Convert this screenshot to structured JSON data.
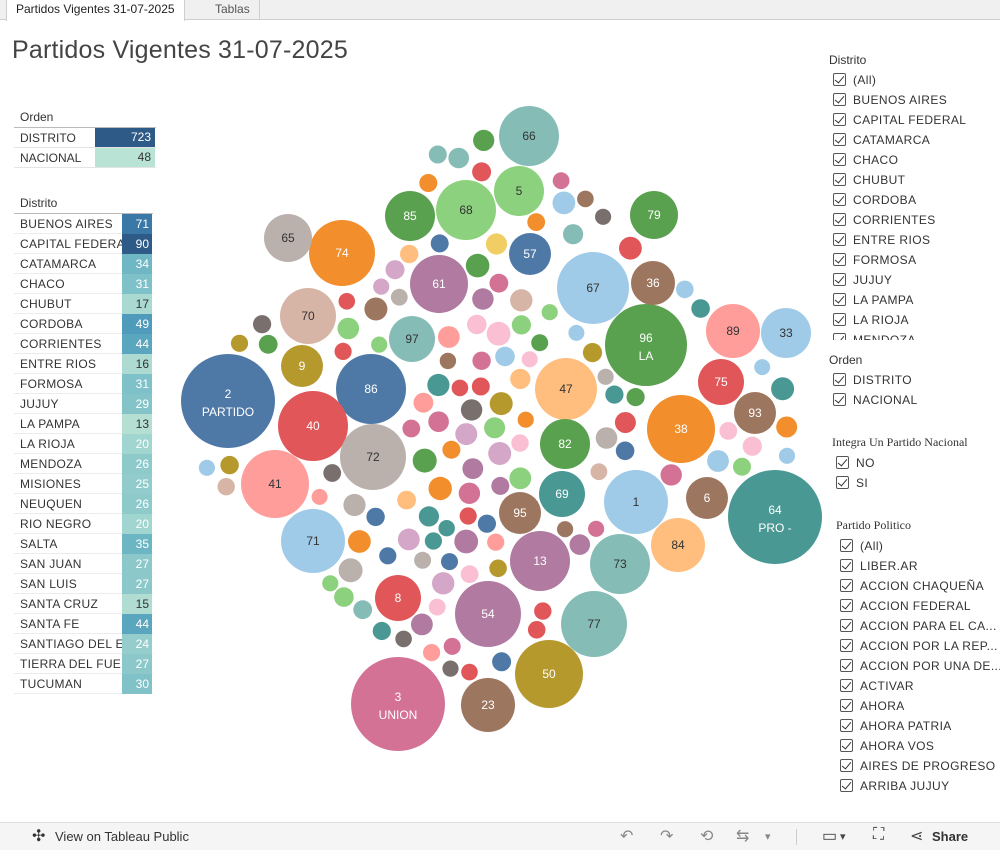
{
  "tabs": [
    {
      "label": "Partidos Vigentes 31-07-2025",
      "active": true
    },
    {
      "label": "Tablas",
      "active": false
    }
  ],
  "title": "Partidos Vigentes 31-07-2025",
  "orden_table": {
    "header": "Orden",
    "rows": [
      {
        "label": "DISTRITO",
        "value": "723",
        "color": "#2e5a87"
      },
      {
        "label": "NACIONAL",
        "value": "48",
        "color": "#b9e3d5"
      }
    ]
  },
  "distrito_table": {
    "header": "Distrito",
    "rows": [
      {
        "label": "BUENOS AIRES",
        "value": "71",
        "color": "#3a78a8"
      },
      {
        "label": "CAPITAL FEDERAL",
        "value": "90",
        "color": "#2e5a87"
      },
      {
        "label": "CATAMARCA",
        "value": "34",
        "color": "#6fb7c4"
      },
      {
        "label": "CHACO",
        "value": "31",
        "color": "#7ec1c8"
      },
      {
        "label": "CHUBUT",
        "value": "17",
        "color": "#a9d9d0"
      },
      {
        "label": "CORDOBA",
        "value": "49",
        "color": "#4f9bbb"
      },
      {
        "label": "CORRIENTES",
        "value": "44",
        "color": "#5aa6bf"
      },
      {
        "label": "ENTRE RIOS",
        "value": "16",
        "color": "#addbd1"
      },
      {
        "label": "FORMOSA",
        "value": "31",
        "color": "#7ec1c8"
      },
      {
        "label": "JUJUY",
        "value": "29",
        "color": "#84c4c9"
      },
      {
        "label": "LA PAMPA",
        "value": "13",
        "color": "#b5dfd3"
      },
      {
        "label": "LA RIOJA",
        "value": "20",
        "color": "#a1d5cf"
      },
      {
        "label": "MENDOZA",
        "value": "26",
        "color": "#8fcacb"
      },
      {
        "label": "MISIONES",
        "value": "25",
        "color": "#92cbcb"
      },
      {
        "label": "NEUQUEN",
        "value": "26",
        "color": "#8fcacb"
      },
      {
        "label": "RIO NEGRO",
        "value": "20",
        "color": "#a1d5cf"
      },
      {
        "label": "SALTA",
        "value": "35",
        "color": "#6cb5c3"
      },
      {
        "label": "SAN JUAN",
        "value": "27",
        "color": "#8cc8ca"
      },
      {
        "label": "SAN LUIS",
        "value": "27",
        "color": "#8cc8ca"
      },
      {
        "label": "SANTA CRUZ",
        "value": "15",
        "color": "#b0dcd2"
      },
      {
        "label": "SANTA FE",
        "value": "44",
        "color": "#5aa6bf"
      },
      {
        "label": "SANTIAGO DEL E..",
        "value": "24",
        "color": "#95cdcc"
      },
      {
        "label": "TIERRA DEL FUE..",
        "value": "27",
        "color": "#8cc8ca"
      },
      {
        "label": "TUCUMAN",
        "value": "30",
        "color": "#81c2c8"
      }
    ]
  },
  "filters": {
    "distrito": {
      "title": "Distrito",
      "items": [
        "(All)",
        "BUENOS AIRES",
        "CAPITAL FEDERAL",
        "CATAMARCA",
        "CHACO",
        "CHUBUT",
        "CORDOBA",
        "CORRIENTES",
        "ENTRE RIOS",
        "FORMOSA",
        "JUJUY",
        "LA PAMPA",
        "LA RIOJA",
        "MENDOZA"
      ]
    },
    "orden": {
      "title": "Orden",
      "items": [
        "DISTRITO",
        "NACIONAL"
      ]
    },
    "integra": {
      "title": "Integra Un Partido Nacional",
      "items": [
        "NO",
        "SI"
      ]
    },
    "partido": {
      "title": "Partido Politico",
      "items": [
        "(All)",
        "LIBER.AR",
        "ACCION CHAQUEÑA",
        "ACCION FEDERAL",
        "ACCION PARA EL CA...",
        "ACCION POR LA REP...",
        "ACCION POR UNA DE...",
        "ACTIVAR",
        "AHORA",
        "AHORA PATRIA",
        "AHORA VOS",
        "AIRES DE PROGRESO",
        "ARRIBA JUJUY"
      ]
    }
  },
  "bubble_labels": [
    {
      "num": "2",
      "sub": "PARTIDO"
    },
    {
      "num": "3",
      "sub": "UNION"
    },
    {
      "num": "64",
      "sub": "PRO -"
    },
    {
      "num": "96",
      "sub": "LA"
    },
    {
      "num": "86"
    },
    {
      "num": "40"
    },
    {
      "num": "72"
    },
    {
      "num": "41"
    },
    {
      "num": "71"
    },
    {
      "num": "74"
    },
    {
      "num": "65"
    },
    {
      "num": "70"
    },
    {
      "num": "9"
    },
    {
      "num": "61"
    },
    {
      "num": "97"
    },
    {
      "num": "85"
    },
    {
      "num": "68"
    },
    {
      "num": "5"
    },
    {
      "num": "66"
    },
    {
      "num": "57"
    },
    {
      "num": "67"
    },
    {
      "num": "79"
    },
    {
      "num": "36"
    },
    {
      "num": "89"
    },
    {
      "num": "33"
    },
    {
      "num": "75"
    },
    {
      "num": "93"
    },
    {
      "num": "47"
    },
    {
      "num": "38"
    },
    {
      "num": "82"
    },
    {
      "num": "69"
    },
    {
      "num": "1"
    },
    {
      "num": "6"
    },
    {
      "num": "95"
    },
    {
      "num": "84"
    },
    {
      "num": "13"
    },
    {
      "num": "73"
    },
    {
      "num": "8"
    },
    {
      "num": "54"
    },
    {
      "num": "77"
    },
    {
      "num": "50"
    },
    {
      "num": "23"
    }
  ],
  "colors": {
    "blue": "#4e79a7",
    "teal": "#499894",
    "green": "#59a14f",
    "lightgreen": "#8cd17d",
    "red": "#e15759",
    "pink": "#ff9d9a",
    "orange": "#f28e2b",
    "lightorange": "#ffbe7d",
    "olive": "#b6992d",
    "yellow": "#f1ce63",
    "purple": "#b07aa1",
    "lightpurple": "#d4a6c8",
    "brown": "#9d7660",
    "tan": "#d7b5a6",
    "gray": "#79706e",
    "lightgray": "#bab0ac",
    "magenta": "#d37295",
    "lightpink": "#fabfd2",
    "lightblue": "#a0cbe8",
    "lightteal": "#86bcb6"
  },
  "toolbar": {
    "view_label": "View on Tableau Public",
    "share_label": "Share"
  }
}
